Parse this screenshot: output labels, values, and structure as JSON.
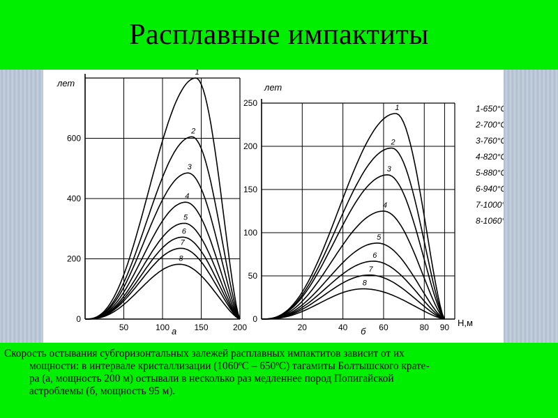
{
  "slide": {
    "title": "Расплавные импактиты",
    "caption_lines": [
      "Скорость остывания субгоризонтальных залежей расплавных импактитов зависит от их",
      "мощности: в интервале кристаллизации (1060ºС – 650ºС) тагамиты Болтышского крате-",
      "ра (а, мощность 200 м) остывали в несколько раз медленнее пород Попигайской",
      "астроблемы (б, мощность 95 м)."
    ]
  },
  "chart_data": [
    {
      "type": "line",
      "panel_label": "а",
      "ylabel": "лет",
      "xlim": [
        0,
        200
      ],
      "ylim": [
        0,
        800
      ],
      "xticks": [
        0,
        50,
        100,
        150,
        200
      ],
      "xtick_labels": [
        "",
        "50",
        "100",
        "150",
        "200"
      ],
      "yticks": [
        0,
        200,
        400,
        600
      ],
      "ytick_labels": [
        "0",
        "200",
        "400",
        "600"
      ],
      "grid": true,
      "series": [
        {
          "name": "1",
          "peak_x": 143,
          "peak_y": 800
        },
        {
          "name": "2",
          "peak_x": 138,
          "peak_y": 605
        },
        {
          "name": "3",
          "peak_x": 133,
          "peak_y": 485
        },
        {
          "name": "4",
          "peak_x": 130,
          "peak_y": 388
        },
        {
          "name": "5",
          "peak_x": 128,
          "peak_y": 318
        },
        {
          "name": "6",
          "peak_x": 126,
          "peak_y": 272
        },
        {
          "name": "7",
          "peak_x": 124,
          "peak_y": 235
        },
        {
          "name": "8",
          "peak_x": 122,
          "peak_y": 182
        }
      ]
    },
    {
      "type": "line",
      "panel_label": "б",
      "ylabel": "лет",
      "xlabel": "Н,м",
      "xlim": [
        0,
        95
      ],
      "ylim": [
        0,
        250
      ],
      "xticks": [
        0,
        20,
        40,
        60,
        80,
        90
      ],
      "xtick_labels": [
        "",
        "20",
        "40",
        "60",
        "80",
        "90"
      ],
      "yticks": [
        0,
        50,
        100,
        150,
        200,
        250
      ],
      "ytick_labels": [
        "0",
        "50",
        "100",
        "150",
        "200",
        "250"
      ],
      "grid": true,
      "legend": [
        "1-650°C",
        "2-700°C",
        "3-760°C",
        "4-820°C",
        "5-880°C",
        "6-940°C",
        "7-1000°C",
        "8-1060°C"
      ],
      "series": [
        {
          "name": "1",
          "peak_x": 66,
          "peak_y": 238
        },
        {
          "name": "2",
          "peak_x": 64,
          "peak_y": 198
        },
        {
          "name": "3",
          "peak_x": 62,
          "peak_y": 167
        },
        {
          "name": "4",
          "peak_x": 60,
          "peak_y": 125
        },
        {
          "name": "5",
          "peak_x": 57,
          "peak_y": 88
        },
        {
          "name": "6",
          "peak_x": 55,
          "peak_y": 67
        },
        {
          "name": "7",
          "peak_x": 53,
          "peak_y": 51
        },
        {
          "name": "8",
          "peak_x": 50,
          "peak_y": 35
        }
      ]
    }
  ]
}
